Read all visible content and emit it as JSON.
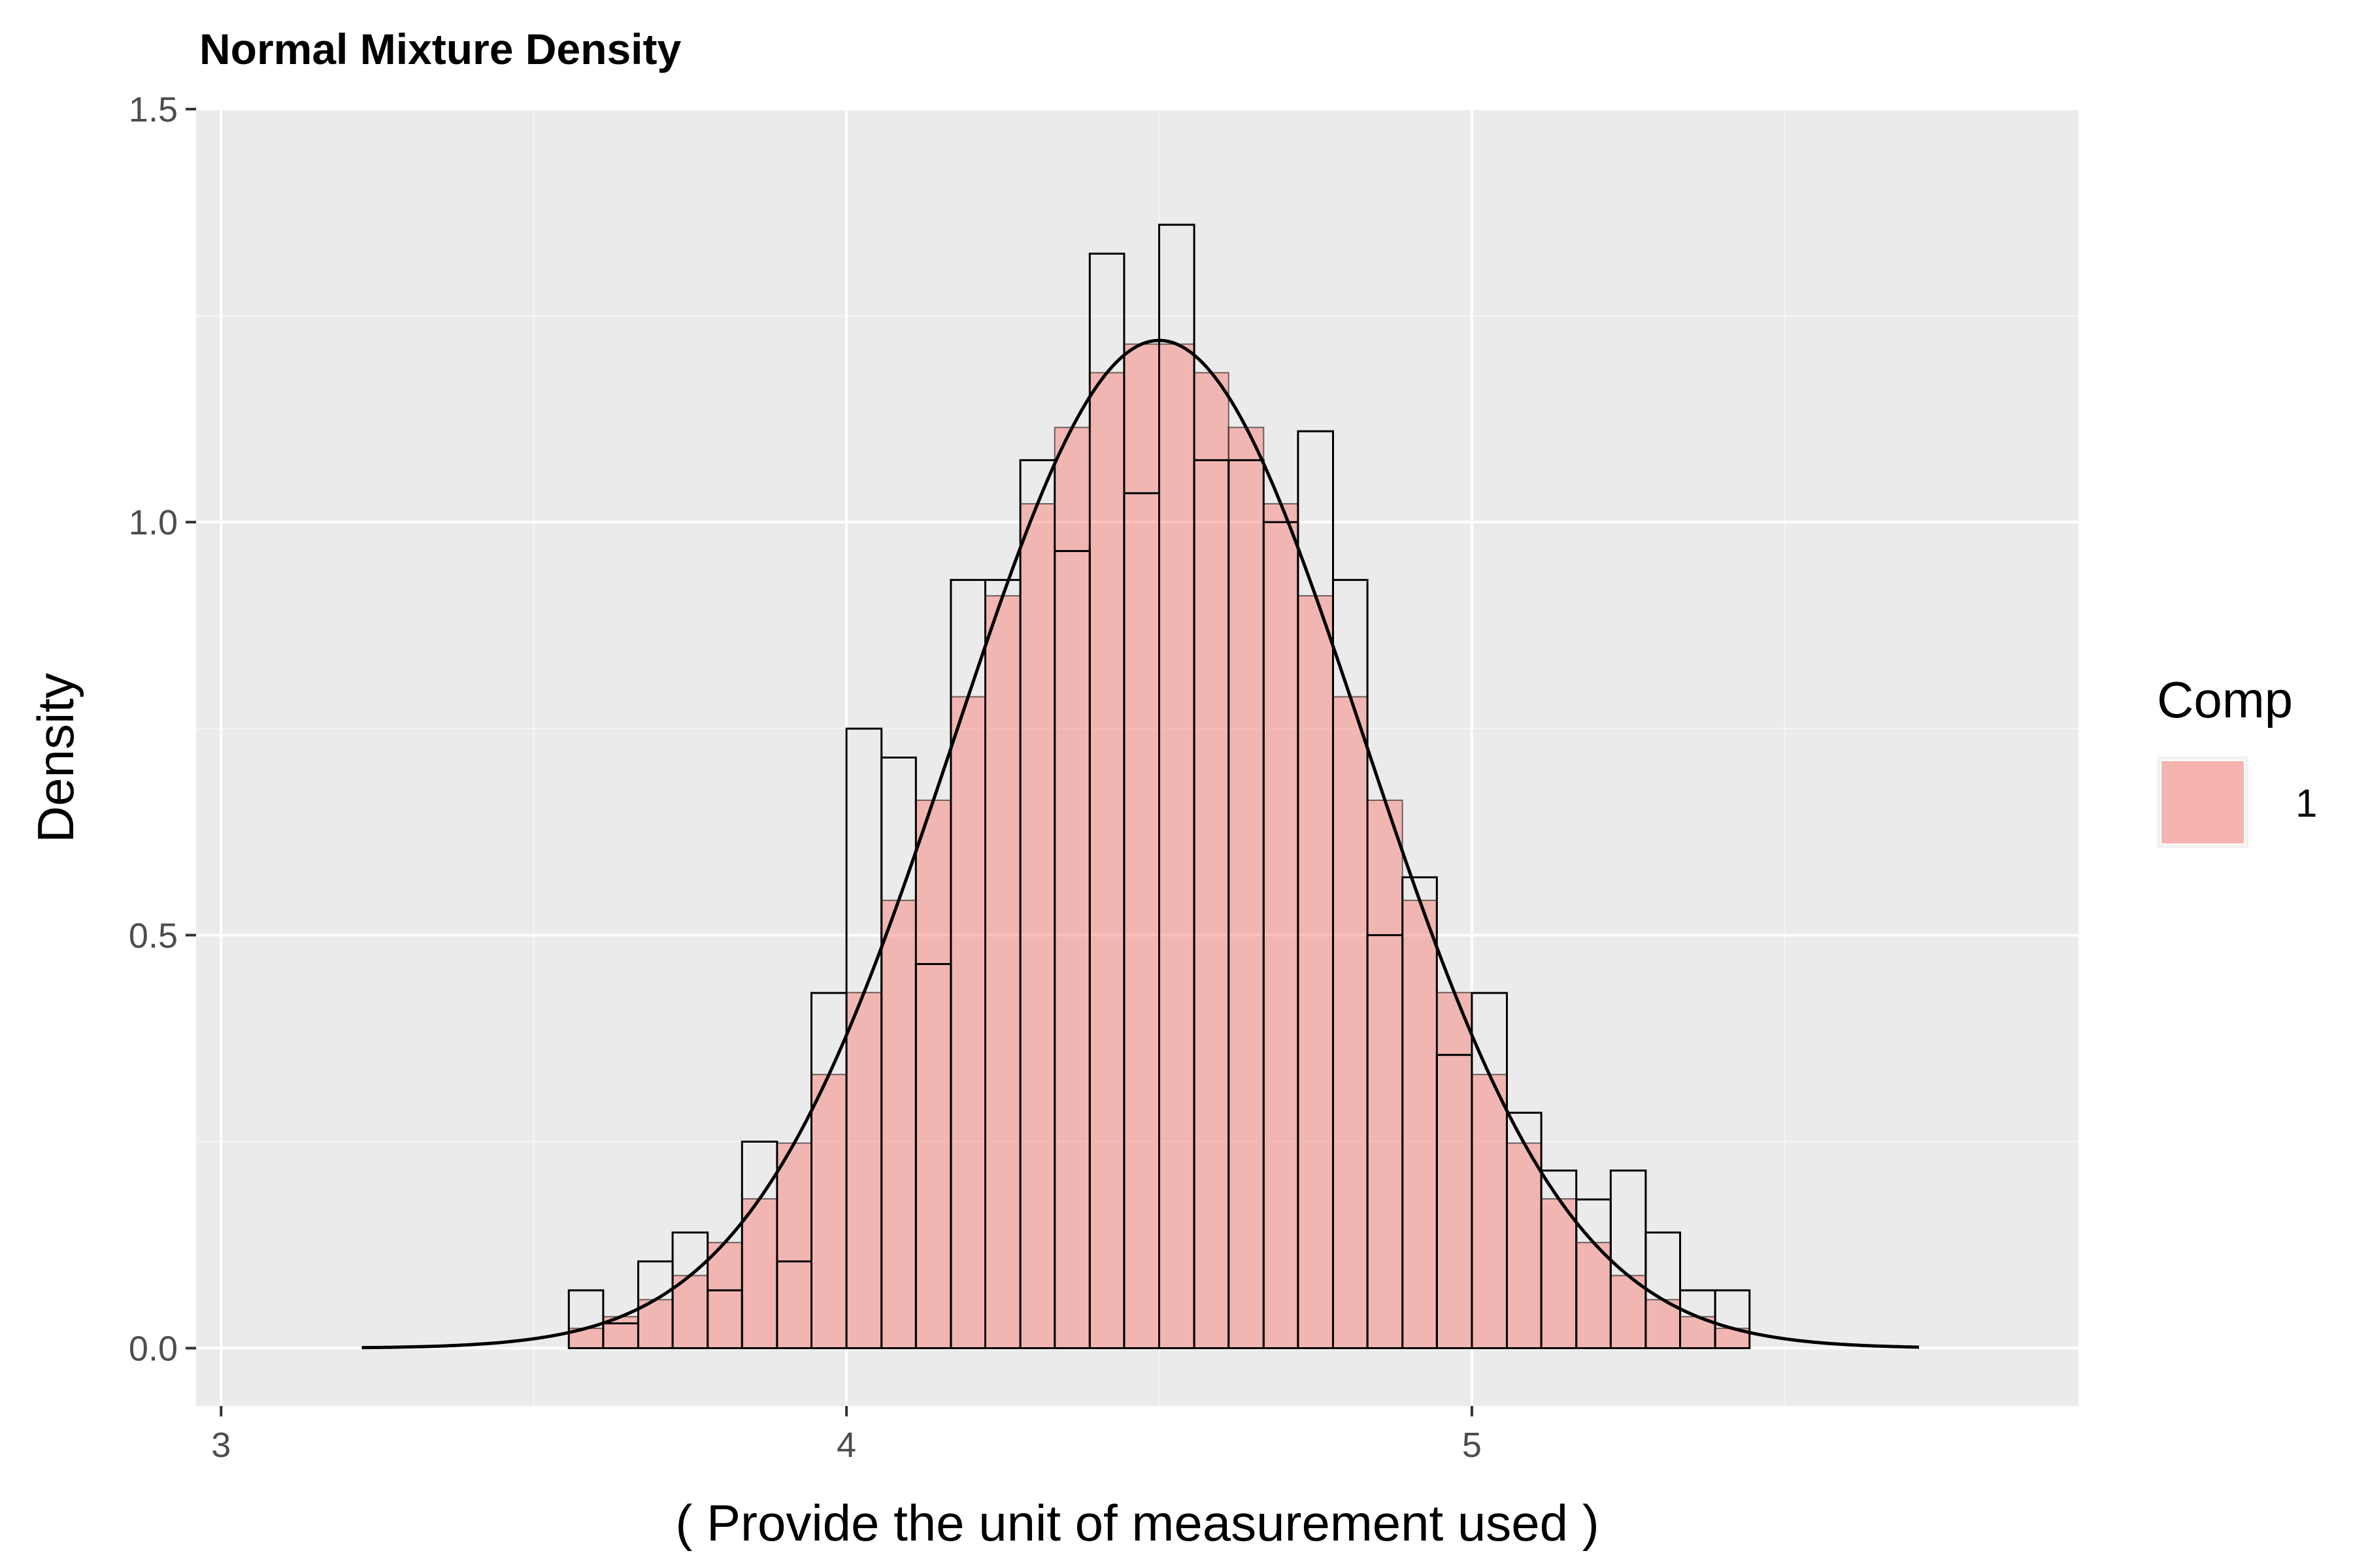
{
  "chart_data": {
    "type": "bar",
    "title": "Normal Mixture Density",
    "xlabel": "( Provide the unit of measurement used )",
    "ylabel": "Density",
    "xlim": [
      2.96,
      5.97
    ],
    "ylim": [
      -0.07,
      1.5
    ],
    "x_ticks": [
      3,
      4,
      5
    ],
    "x_tick_labels": [
      "3",
      "4",
      "5"
    ],
    "y_ticks": [
      0.0,
      0.5,
      1.0,
      1.5
    ],
    "y_tick_labels": [
      "0.0",
      "0.5",
      "1.0",
      "1.5"
    ],
    "grid": true,
    "legend": {
      "title": "Comp",
      "position": "right",
      "entries": [
        {
          "label": "1",
          "color": "#F8766D"
        }
      ]
    },
    "histogram": {
      "bin_width": 0.0556,
      "bins": [
        {
          "x0": 3.556,
          "x1": 3.611,
          "density": 0.07
        },
        {
          "x0": 3.611,
          "x1": 3.667,
          "density": 0.03
        },
        {
          "x0": 3.667,
          "x1": 3.722,
          "density": 0.105
        },
        {
          "x0": 3.722,
          "x1": 3.778,
          "density": 0.14
        },
        {
          "x0": 3.778,
          "x1": 3.833,
          "density": 0.07
        },
        {
          "x0": 3.833,
          "x1": 3.889,
          "density": 0.25
        },
        {
          "x0": 3.889,
          "x1": 3.944,
          "density": 0.105
        },
        {
          "x0": 3.944,
          "x1": 4.0,
          "density": 0.43
        },
        {
          "x0": 4.0,
          "x1": 4.056,
          "density": 0.75
        },
        {
          "x0": 4.056,
          "x1": 4.111,
          "density": 0.715
        },
        {
          "x0": 4.111,
          "x1": 4.167,
          "density": 0.465
        },
        {
          "x0": 4.167,
          "x1": 4.222,
          "density": 0.93
        },
        {
          "x0": 4.222,
          "x1": 4.278,
          "density": 0.93
        },
        {
          "x0": 4.278,
          "x1": 4.333,
          "density": 1.075
        },
        {
          "x0": 4.333,
          "x1": 4.389,
          "density": 0.965
        },
        {
          "x0": 4.389,
          "x1": 4.444,
          "density": 1.325
        },
        {
          "x0": 4.444,
          "x1": 4.5,
          "density": 1.035
        },
        {
          "x0": 4.5,
          "x1": 4.556,
          "density": 1.36
        },
        {
          "x0": 4.556,
          "x1": 4.611,
          "density": 1.075
        },
        {
          "x0": 4.611,
          "x1": 4.667,
          "density": 1.075
        },
        {
          "x0": 4.667,
          "x1": 4.722,
          "density": 1.0
        },
        {
          "x0": 4.722,
          "x1": 4.778,
          "density": 1.11
        },
        {
          "x0": 4.778,
          "x1": 4.833,
          "density": 0.93
        },
        {
          "x0": 4.833,
          "x1": 4.889,
          "density": 0.5
        },
        {
          "x0": 4.889,
          "x1": 4.944,
          "density": 0.57
        },
        {
          "x0": 4.944,
          "x1": 5.0,
          "density": 0.355
        },
        {
          "x0": 5.0,
          "x1": 5.056,
          "density": 0.43
        },
        {
          "x0": 5.056,
          "x1": 5.111,
          "density": 0.285
        },
        {
          "x0": 5.111,
          "x1": 5.167,
          "density": 0.215
        },
        {
          "x0": 5.167,
          "x1": 5.222,
          "density": 0.18
        },
        {
          "x0": 5.222,
          "x1": 5.278,
          "density": 0.215
        },
        {
          "x0": 5.278,
          "x1": 5.333,
          "density": 0.14
        },
        {
          "x0": 5.333,
          "x1": 5.389,
          "density": 0.07
        },
        {
          "x0": 5.389,
          "x1": 5.444,
          "density": 0.07
        }
      ]
    },
    "components": [
      {
        "name": "1",
        "mean": 4.5,
        "sd": 0.327,
        "weight": 1.0,
        "color": "#F8766D"
      }
    ],
    "curve_range": [
      3.225,
      5.715
    ]
  },
  "colors": {
    "panel_background": "#EBEBEB",
    "grid_major": "#FFFFFF",
    "grid_minor": "#F5F5F5",
    "fill": "#F8766D",
    "curve": "#000000",
    "bar_outline": "#000000"
  }
}
